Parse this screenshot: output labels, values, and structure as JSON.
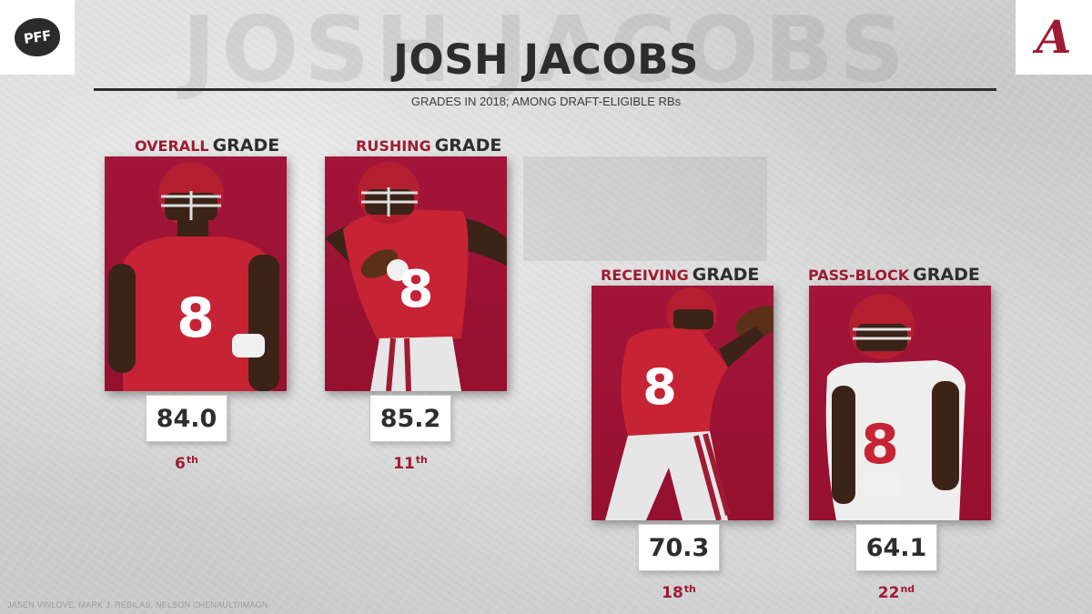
{
  "brand": {
    "logo_text": "PFF",
    "team_logo": "A",
    "accent_color": "#9e1b32",
    "text_color": "#2d2d2d"
  },
  "header": {
    "ghost_text": "JOSH JACOBS",
    "title": "JOSH JACOBS",
    "subtitle": "GRADES IN 2018; AMONG DRAFT-ELIGIBLE RBs"
  },
  "panels": [
    {
      "label_accent": "OVERALL",
      "label_main": "GRADE",
      "grade": "84.0",
      "rank": "6",
      "rank_suffix": "th",
      "jersey": "8",
      "uniform": "crimson"
    },
    {
      "label_accent": "RUSHING",
      "label_main": "GRADE",
      "grade": "85.2",
      "rank": "11",
      "rank_suffix": "th",
      "jersey": "8",
      "uniform": "crimson"
    },
    {
      "label_accent": "RECEIVING",
      "label_main": "GRADE",
      "grade": "70.3",
      "rank": "18",
      "rank_suffix": "th",
      "jersey": "8",
      "uniform": "crimson"
    },
    {
      "label_accent": "PASS-BLOCK",
      "label_main": "GRADE",
      "grade": "64.1",
      "rank": "22",
      "rank_suffix": "nd",
      "jersey": "8",
      "uniform": "white"
    }
  ],
  "credit": "JASEN VINLOVE, MARK J. REBILAS, NELSON CHENAULT/IMAGN"
}
